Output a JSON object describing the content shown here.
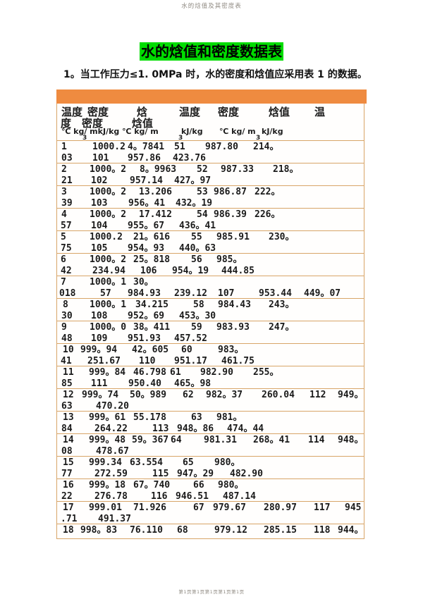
{
  "page": {
    "header_text": "水的焓值及其密度表",
    "title": "水的焓值和密度数据表",
    "intro": "1。当工作压力≤1. 0MPa 时，水的密度和焓值应采用表 1 的数据。",
    "footer_text": "第1页第1页第1页第1页第1页"
  },
  "colors": {
    "highlight_green": "#00dc00",
    "header_bar_orange": "#ef8b40",
    "border_tan": "#d8a568",
    "muted_gray": "#8f8a82"
  },
  "table": {
    "header_lines": [
      {
        "cls": "h-cn",
        "y": 1,
        "segments": [
          [
            6,
            "温度"
          ],
          [
            43,
            "密度"
          ],
          [
            113,
            "焓"
          ],
          [
            173,
            "温度"
          ],
          [
            228,
            "密度"
          ],
          [
            300,
            "焓值"
          ],
          [
            365,
            "温"
          ]
        ]
      },
      {
        "cls": "h-cn",
        "y": 17,
        "segments": [
          [
            5,
            "度"
          ],
          [
            35,
            "密度"
          ],
          [
            106,
            "焓值"
          ]
        ]
      },
      {
        "cls": "h-units",
        "y": 33,
        "segments": [
          [
            6,
            "℃ kg/ mkJ/kg ℃ kg/ m"
          ],
          [
            176,
            "kJ/kg"
          ],
          [
            230,
            "℃ kg/ m"
          ],
          [
            290,
            "kJ/kg"
          ]
        ]
      },
      {
        "cls": "h-sub",
        "y": 44,
        "segments": [
          [
            36,
            "3"
          ],
          [
            172,
            "3"
          ],
          [
            282,
            "3"
          ]
        ]
      }
    ],
    "rows": [
      {
        "lines": [
          [
            [
              6,
              "1"
            ],
            [
              50,
              "1000.2"
            ],
            [
              100,
              "4。7841"
            ],
            [
              166,
              "51"
            ],
            [
              210,
              "987.80"
            ],
            [
              278,
              "214。"
            ]
          ],
          [
            [
              6,
              "03"
            ],
            [
              50,
              "101"
            ],
            [
              100,
              "957.86"
            ],
            [
              164,
              "423.76"
            ]
          ]
        ]
      },
      {
        "lines": [
          [
            [
              6,
              "2"
            ],
            [
              46,
              "1000。2"
            ],
            [
              117,
              "8。9963"
            ],
            [
              198,
              "52"
            ],
            [
              232,
              "987.33"
            ],
            [
              306,
              "218。"
            ]
          ],
          [
            [
              6,
              "21"
            ],
            [
              48,
              "102"
            ],
            [
              103,
              "957.14"
            ],
            [
              166,
              "427。97"
            ]
          ]
        ]
      },
      {
        "lines": [
          [
            [
              6,
              "3"
            ],
            [
              46,
              "1000。2"
            ],
            [
              116,
              "13.206"
            ],
            [
              198,
              "53"
            ],
            [
              222,
              "986.87"
            ],
            [
              280,
              "222。"
            ]
          ],
          [
            [
              6,
              "39"
            ],
            [
              48,
              "103"
            ],
            [
              101,
              "956。41"
            ],
            [
              168,
              "432。19"
            ]
          ]
        ]
      },
      {
        "lines": [
          [
            [
              6,
              "4"
            ],
            [
              46,
              "1000。2"
            ],
            [
              116,
              "17.412"
            ],
            [
              198,
              "54"
            ],
            [
              222,
              "986.39"
            ],
            [
              280,
              "226。"
            ]
          ],
          [
            [
              5,
              "57"
            ],
            [
              48,
              "104"
            ],
            [
              100,
              "955。67"
            ],
            [
              173,
              "436。41"
            ]
          ]
        ]
      },
      {
        "lines": [
          [
            [
              5,
              "5"
            ],
            [
              46,
              "1000.2"
            ],
            [
              108,
              "21。616"
            ],
            [
              190,
              "55"
            ],
            [
              226,
              "985.91"
            ],
            [
              300,
              "230。"
            ]
          ],
          [
            [
              5,
              "75"
            ],
            [
              48,
              "105"
            ],
            [
              100,
              "954。93"
            ],
            [
              173,
              "440。63"
            ]
          ]
        ]
      },
      {
        "lines": [
          [
            [
              5,
              "6"
            ],
            [
              46,
              "1000。2"
            ],
            [
              108,
              "25。818"
            ],
            [
              190,
              "56"
            ],
            [
              226,
              "985。"
            ]
          ],
          [
            [
              5,
              "42"
            ],
            [
              50,
              "234.94"
            ],
            [
              118,
              "106"
            ],
            [
              163,
              "954。19"
            ],
            [
              233,
              "444.85"
            ]
          ]
        ]
      },
      {
        "lines": [
          [
            [
              5,
              "7"
            ],
            [
              46,
              "1000。1"
            ],
            [
              108,
              "30。"
            ]
          ],
          [
            [
              3,
              "018"
            ],
            [
              61,
              "57"
            ],
            [
              100,
              "984.93"
            ],
            [
              166,
              "239.12"
            ],
            [
              228,
              "107"
            ],
            [
              286,
              "953.44"
            ],
            [
              350,
              "449。07"
            ]
          ]
        ]
      },
      {
        "lines": [
          [
            [
              8,
              "8"
            ],
            [
              46,
              "1000。1"
            ],
            [
              111,
              "34.215"
            ],
            [
              193,
              "58"
            ],
            [
              228,
              "984.43"
            ],
            [
              300,
              "243。"
            ]
          ],
          [
            [
              6,
              "30"
            ],
            [
              48,
              "108"
            ],
            [
              100,
              "952。69"
            ],
            [
              173,
              "453。30"
            ]
          ]
        ]
      },
      {
        "lines": [
          [
            [
              6,
              "9"
            ],
            [
              46,
              "1000。0"
            ],
            [
              108,
              "38。411"
            ],
            [
              190,
              "59"
            ],
            [
              226,
              "983.93"
            ],
            [
              300,
              "247。"
            ]
          ],
          [
            [
              6,
              "48"
            ],
            [
              48,
              "109"
            ],
            [
              100,
              "951.93"
            ],
            [
              166,
              "457.52"
            ]
          ]
        ]
      },
      {
        "lines": [
          [
            [
              8,
              "10"
            ],
            [
              33,
              "999。94"
            ],
            [
              106,
              "42。605"
            ],
            [
              176,
              "60"
            ],
            [
              228,
              "983。"
            ]
          ],
          [
            [
              5,
              "41"
            ],
            [
              43,
              "251.67"
            ],
            [
              116,
              "110"
            ],
            [
              166,
              "951.17"
            ],
            [
              233,
              "461.75"
            ]
          ]
        ]
      },
      {
        "lines": [
          [
            [
              8,
              "11"
            ],
            [
              45,
              "999。84"
            ],
            [
              108,
              "46.798"
            ],
            [
              160,
              "61"
            ],
            [
              203,
              "982.90"
            ],
            [
              278,
              "255。"
            ]
          ],
          [
            [
              6,
              "85"
            ],
            [
              48,
              "111"
            ],
            [
              101,
              "950.40"
            ],
            [
              166,
              "465。98"
            ]
          ]
        ]
      },
      {
        "lines": [
          [
            [
              8,
              "12"
            ],
            [
              35,
              "999。74"
            ],
            [
              103,
              "50。989"
            ],
            [
              178,
              "62"
            ],
            [
              211,
              "982。37"
            ],
            [
              290,
              "260.04"
            ],
            [
              358,
              "112"
            ],
            [
              398,
              "949。"
            ]
          ],
          [
            [
              6,
              "63"
            ],
            [
              55,
              "470.20"
            ]
          ]
        ]
      },
      {
        "lines": [
          [
            [
              8,
              "13"
            ],
            [
              45,
              "999。61"
            ],
            [
              108,
              "55.178"
            ],
            [
              190,
              "63"
            ],
            [
              226,
              "981。"
            ]
          ],
          [
            [
              6,
              "84"
            ],
            [
              53,
              "264.22"
            ],
            [
              135,
              "113"
            ],
            [
              170,
              "948。86"
            ],
            [
              241,
              "474。44"
            ]
          ]
        ]
      },
      {
        "lines": [
          [
            [
              8,
              "14"
            ],
            [
              45,
              "999。48"
            ],
            [
              106,
              "59。367"
            ],
            [
              161,
              "64"
            ],
            [
              208,
              "981.31"
            ],
            [
              278,
              "268。41"
            ],
            [
              356,
              "114"
            ],
            [
              398,
              "948。"
            ]
          ],
          [
            [
              6,
              "08"
            ],
            [
              55,
              "478.67"
            ]
          ]
        ]
      },
      {
        "lines": [
          [
            [
              8,
              "15"
            ],
            [
              45,
              "999.34"
            ],
            [
              103,
              "63.554"
            ],
            [
              178,
              "65"
            ],
            [
              223,
              "980。"
            ]
          ],
          [
            [
              6,
              "77"
            ],
            [
              53,
              "272.59"
            ],
            [
              135,
              "115"
            ],
            [
              170,
              "947。29"
            ],
            [
              245,
              "482.90"
            ]
          ]
        ]
      },
      {
        "lines": [
          [
            [
              8,
              "16"
            ],
            [
              45,
              "999。18"
            ],
            [
              108,
              "67。740"
            ],
            [
              193,
              "66"
            ],
            [
              228,
              "980。"
            ]
          ],
          [
            [
              6,
              "22"
            ],
            [
              53,
              "276.78"
            ],
            [
              133,
              "116"
            ],
            [
              168,
              "946.51"
            ],
            [
              235,
              "487.14"
            ]
          ]
        ]
      },
      {
        "lines": [
          [
            [
              8,
              "17"
            ],
            [
              45,
              "999.01"
            ],
            [
              108,
              "71.926"
            ],
            [
              193,
              "67"
            ],
            [
              221,
              "979.67"
            ],
            [
              293,
              "280.97"
            ],
            [
              364,
              "117"
            ],
            [
              408,
              "945"
            ]
          ],
          [
            [
              5,
              ".71"
            ],
            [
              58,
              "491.37"
            ]
          ]
        ]
      },
      {
        "lines": [
          [
            [
              8,
              "18"
            ],
            [
              33,
              "998。83"
            ],
            [
              103,
              "76.110"
            ],
            [
              170,
              "68"
            ],
            [
              223,
              "979.12"
            ],
            [
              293,
              "285.15"
            ],
            [
              364,
              "118"
            ],
            [
              398,
              "944。"
            ]
          ]
        ]
      }
    ]
  }
}
